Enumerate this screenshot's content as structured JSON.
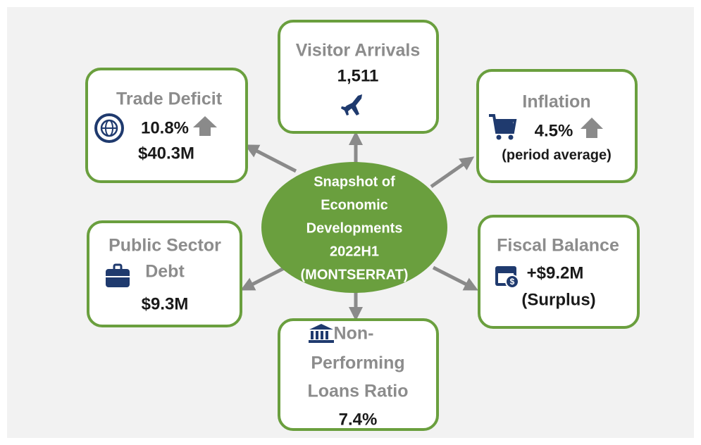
{
  "center": {
    "lines": [
      "Snapshot of",
      "Economic",
      "Developments",
      "2022H1",
      "(MONTSERRAT)"
    ]
  },
  "boxes": [
    {
      "title": [
        "Visitor Arrivals"
      ],
      "details": [
        "1,511"
      ]
    },
    {
      "title": [
        "Trade Deficit"
      ],
      "details": [
        "10.8%",
        "$40.3M"
      ]
    },
    {
      "title": [
        "Inflation"
      ],
      "details": [
        "4.5%",
        "(period average)"
      ]
    },
    {
      "title": [
        "Public Sector",
        "Debt"
      ],
      "details": [
        "$9.3M"
      ]
    },
    {
      "title": [
        "Fiscal Balance"
      ],
      "details": [
        "+$9.2M",
        "(Surplus)"
      ]
    },
    {
      "title": [
        "Non-",
        "Performing",
        "Loans Ratio"
      ],
      "details": [
        "7.4%"
      ]
    }
  ]
}
